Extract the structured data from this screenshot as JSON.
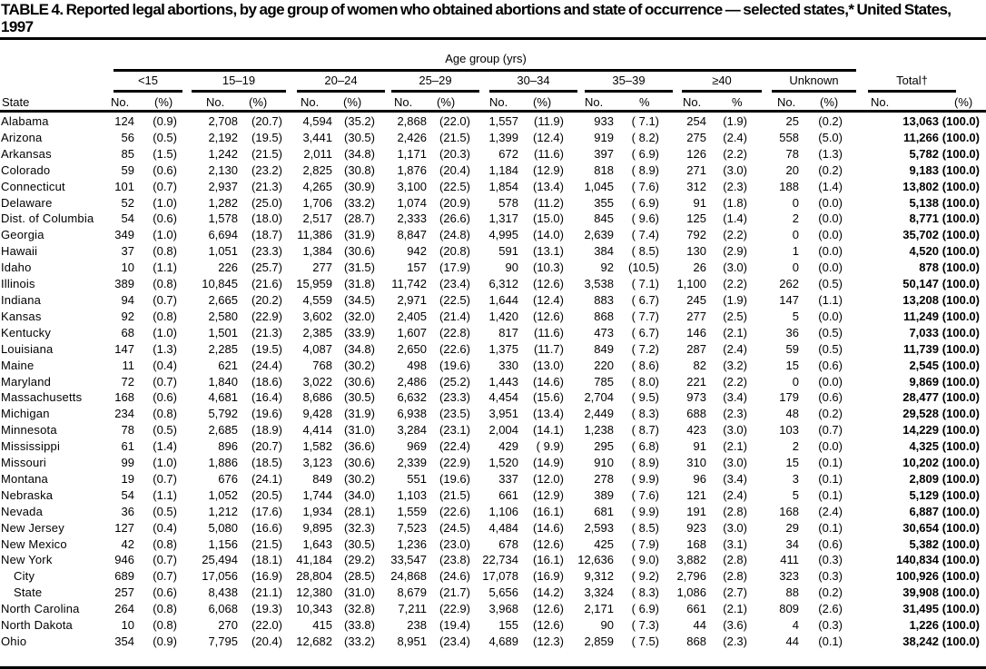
{
  "title": "TABLE 4. Reported legal abortions, by age group of women who obtained abortions and state of occurrence — selected states,* United States, 1997",
  "spanner": "Age group (yrs)",
  "groups": [
    "<15",
    "15–19",
    "20–24",
    "25–29",
    "30–34",
    "35–39",
    "≥40",
    "Unknown",
    "Total†"
  ],
  "col_heads": {
    "state": "State",
    "no": "No.",
    "pct": "(%)",
    "pct_plain": "%"
  },
  "rows": [
    {
      "state": "Alabama",
      "cells": [
        "124",
        "(0.9)",
        "2,708",
        "(20.7)",
        "4,594",
        "(35.2)",
        "2,868",
        "(22.0)",
        "1,557",
        "(11.9)",
        "933",
        "( 7.1)",
        "254",
        "(1.9)",
        "25",
        "(0.2)",
        "13,063",
        "(100.0)"
      ]
    },
    {
      "state": "Arizona",
      "cells": [
        "56",
        "(0.5)",
        "2,192",
        "(19.5)",
        "3,441",
        "(30.5)",
        "2,426",
        "(21.5)",
        "1,399",
        "(12.4)",
        "919",
        "( 8.2)",
        "275",
        "(2.4)",
        "558",
        "(5.0)",
        "11,266",
        "(100.0)"
      ]
    },
    {
      "state": "Arkansas",
      "cells": [
        "85",
        "(1.5)",
        "1,242",
        "(21.5)",
        "2,011",
        "(34.8)",
        "1,171",
        "(20.3)",
        "672",
        "(11.6)",
        "397",
        "( 6.9)",
        "126",
        "(2.2)",
        "78",
        "(1.3)",
        "5,782",
        "(100.0)"
      ]
    },
    {
      "state": "Colorado",
      "cells": [
        "59",
        "(0.6)",
        "2,130",
        "(23.2)",
        "2,825",
        "(30.8)",
        "1,876",
        "(20.4)",
        "1,184",
        "(12.9)",
        "818",
        "( 8.9)",
        "271",
        "(3.0)",
        "20",
        "(0.2)",
        "9,183",
        "(100.0)"
      ]
    },
    {
      "state": "Connecticut",
      "cells": [
        "101",
        "(0.7)",
        "2,937",
        "(21.3)",
        "4,265",
        "(30.9)",
        "3,100",
        "(22.5)",
        "1,854",
        "(13.4)",
        "1,045",
        "( 7.6)",
        "312",
        "(2.3)",
        "188",
        "(1.4)",
        "13,802",
        "(100.0)"
      ]
    },
    {
      "state": "Delaware",
      "cells": [
        "52",
        "(1.0)",
        "1,282",
        "(25.0)",
        "1,706",
        "(33.2)",
        "1,074",
        "(20.9)",
        "578",
        "(11.2)",
        "355",
        "( 6.9)",
        "91",
        "(1.8)",
        "0",
        "(0.0)",
        "5,138",
        "(100.0)"
      ]
    },
    {
      "state": "Dist. of Columbia",
      "cells": [
        "54",
        "(0.6)",
        "1,578",
        "(18.0)",
        "2,517",
        "(28.7)",
        "2,333",
        "(26.6)",
        "1,317",
        "(15.0)",
        "845",
        "( 9.6)",
        "125",
        "(1.4)",
        "2",
        "(0.0)",
        "8,771",
        "(100.0)"
      ]
    },
    {
      "state": "Georgia",
      "cells": [
        "349",
        "(1.0)",
        "6,694",
        "(18.7)",
        "11,386",
        "(31.9)",
        "8,847",
        "(24.8)",
        "4,995",
        "(14.0)",
        "2,639",
        "( 7.4)",
        "792",
        "(2.2)",
        "0",
        "(0.0)",
        "35,702",
        "(100.0)"
      ]
    },
    {
      "state": "Hawaii",
      "cells": [
        "37",
        "(0.8)",
        "1,051",
        "(23.3)",
        "1,384",
        "(30.6)",
        "942",
        "(20.8)",
        "591",
        "(13.1)",
        "384",
        "( 8.5)",
        "130",
        "(2.9)",
        "1",
        "(0.0)",
        "4,520",
        "(100.0)"
      ]
    },
    {
      "state": "Idaho",
      "cells": [
        "10",
        "(1.1)",
        "226",
        "(25.7)",
        "277",
        "(31.5)",
        "157",
        "(17.9)",
        "90",
        "(10.3)",
        "92",
        "(10.5)",
        "26",
        "(3.0)",
        "0",
        "(0.0)",
        "878",
        "(100.0)"
      ]
    },
    {
      "state": "Illinois",
      "cells": [
        "389",
        "(0.8)",
        "10,845",
        "(21.6)",
        "15,959",
        "(31.8)",
        "11,742",
        "(23.4)",
        "6,312",
        "(12.6)",
        "3,538",
        "( 7.1)",
        "1,100",
        "(2.2)",
        "262",
        "(0.5)",
        "50,147",
        "(100.0)"
      ]
    },
    {
      "state": "Indiana",
      "cells": [
        "94",
        "(0.7)",
        "2,665",
        "(20.2)",
        "4,559",
        "(34.5)",
        "2,971",
        "(22.5)",
        "1,644",
        "(12.4)",
        "883",
        "( 6.7)",
        "245",
        "(1.9)",
        "147",
        "(1.1)",
        "13,208",
        "(100.0)"
      ]
    },
    {
      "state": "Kansas",
      "cells": [
        "92",
        "(0.8)",
        "2,580",
        "(22.9)",
        "3,602",
        "(32.0)",
        "2,405",
        "(21.4)",
        "1,420",
        "(12.6)",
        "868",
        "( 7.7)",
        "277",
        "(2.5)",
        "5",
        "(0.0)",
        "11,249",
        "(100.0)"
      ]
    },
    {
      "state": "Kentucky",
      "cells": [
        "68",
        "(1.0)",
        "1,501",
        "(21.3)",
        "2,385",
        "(33.9)",
        "1,607",
        "(22.8)",
        "817",
        "(11.6)",
        "473",
        "( 6.7)",
        "146",
        "(2.1)",
        "36",
        "(0.5)",
        "7,033",
        "(100.0)"
      ]
    },
    {
      "state": "Louisiana",
      "cells": [
        "147",
        "(1.3)",
        "2,285",
        "(19.5)",
        "4,087",
        "(34.8)",
        "2,650",
        "(22.6)",
        "1,375",
        "(11.7)",
        "849",
        "( 7.2)",
        "287",
        "(2.4)",
        "59",
        "(0.5)",
        "11,739",
        "(100.0)"
      ]
    },
    {
      "state": "Maine",
      "cells": [
        "11",
        "(0.4)",
        "621",
        "(24.4)",
        "768",
        "(30.2)",
        "498",
        "(19.6)",
        "330",
        "(13.0)",
        "220",
        "( 8.6)",
        "82",
        "(3.2)",
        "15",
        "(0.6)",
        "2,545",
        "(100.0)"
      ]
    },
    {
      "state": "Maryland",
      "cells": [
        "72",
        "(0.7)",
        "1,840",
        "(18.6)",
        "3,022",
        "(30.6)",
        "2,486",
        "(25.2)",
        "1,443",
        "(14.6)",
        "785",
        "( 8.0)",
        "221",
        "(2.2)",
        "0",
        "(0.0)",
        "9,869",
        "(100.0)"
      ]
    },
    {
      "state": "Massachusetts",
      "cells": [
        "168",
        "(0.6)",
        "4,681",
        "(16.4)",
        "8,686",
        "(30.5)",
        "6,632",
        "(23.3)",
        "4,454",
        "(15.6)",
        "2,704",
        "( 9.5)",
        "973",
        "(3.4)",
        "179",
        "(0.6)",
        "28,477",
        "(100.0)"
      ]
    },
    {
      "state": "Michigan",
      "cells": [
        "234",
        "(0.8)",
        "5,792",
        "(19.6)",
        "9,428",
        "(31.9)",
        "6,938",
        "(23.5)",
        "3,951",
        "(13.4)",
        "2,449",
        "( 8.3)",
        "688",
        "(2.3)",
        "48",
        "(0.2)",
        "29,528",
        "(100.0)"
      ]
    },
    {
      "state": "Minnesota",
      "cells": [
        "78",
        "(0.5)",
        "2,685",
        "(18.9)",
        "4,414",
        "(31.0)",
        "3,284",
        "(23.1)",
        "2,004",
        "(14.1)",
        "1,238",
        "( 8.7)",
        "423",
        "(3.0)",
        "103",
        "(0.7)",
        "14,229",
        "(100.0)"
      ]
    },
    {
      "state": "Mississippi",
      "cells": [
        "61",
        "(1.4)",
        "896",
        "(20.7)",
        "1,582",
        "(36.6)",
        "969",
        "(22.4)",
        "429",
        "( 9.9)",
        "295",
        "( 6.8)",
        "91",
        "(2.1)",
        "2",
        "(0.0)",
        "4,325",
        "(100.0)"
      ]
    },
    {
      "state": "Missouri",
      "cells": [
        "99",
        "(1.0)",
        "1,886",
        "(18.5)",
        "3,123",
        "(30.6)",
        "2,339",
        "(22.9)",
        "1,520",
        "(14.9)",
        "910",
        "( 8.9)",
        "310",
        "(3.0)",
        "15",
        "(0.1)",
        "10,202",
        "(100.0)"
      ]
    },
    {
      "state": "Montana",
      "cells": [
        "19",
        "(0.7)",
        "676",
        "(24.1)",
        "849",
        "(30.2)",
        "551",
        "(19.6)",
        "337",
        "(12.0)",
        "278",
        "( 9.9)",
        "96",
        "(3.4)",
        "3",
        "(0.1)",
        "2,809",
        "(100.0)"
      ]
    },
    {
      "state": "Nebraska",
      "cells": [
        "54",
        "(1.1)",
        "1,052",
        "(20.5)",
        "1,744",
        "(34.0)",
        "1,103",
        "(21.5)",
        "661",
        "(12.9)",
        "389",
        "( 7.6)",
        "121",
        "(2.4)",
        "5",
        "(0.1)",
        "5,129",
        "(100.0)"
      ]
    },
    {
      "state": "Nevada",
      "cells": [
        "36",
        "(0.5)",
        "1,212",
        "(17.6)",
        "1,934",
        "(28.1)",
        "1,559",
        "(22.6)",
        "1,106",
        "(16.1)",
        "681",
        "( 9.9)",
        "191",
        "(2.8)",
        "168",
        "(2.4)",
        "6,887",
        "(100.0)"
      ]
    },
    {
      "state": "New Jersey",
      "cells": [
        "127",
        "(0.4)",
        "5,080",
        "(16.6)",
        "9,895",
        "(32.3)",
        "7,523",
        "(24.5)",
        "4,484",
        "(14.6)",
        "2,593",
        "( 8.5)",
        "923",
        "(3.0)",
        "29",
        "(0.1)",
        "30,654",
        "(100.0)"
      ]
    },
    {
      "state": "New Mexico",
      "cells": [
        "42",
        "(0.8)",
        "1,156",
        "(21.5)",
        "1,643",
        "(30.5)",
        "1,236",
        "(23.0)",
        "678",
        "(12.6)",
        "425",
        "( 7.9)",
        "168",
        "(3.1)",
        "34",
        "(0.6)",
        "5,382",
        "(100.0)"
      ]
    },
    {
      "state": "New York",
      "cells": [
        "946",
        "(0.7)",
        "25,494",
        "(18.1)",
        "41,184",
        "(29.2)",
        "33,547",
        "(23.8)",
        "22,734",
        "(16.1)",
        "12,636",
        "( 9.0)",
        "3,882",
        "(2.8)",
        "411",
        "(0.3)",
        "140,834",
        "(100.0)"
      ]
    },
    {
      "state": "City",
      "sub": true,
      "cells": [
        "689",
        "(0.7)",
        "17,056",
        "(16.9)",
        "28,804",
        "(28.5)",
        "24,868",
        "(24.6)",
        "17,078",
        "(16.9)",
        "9,312",
        "( 9.2)",
        "2,796",
        "(2.8)",
        "323",
        "(0.3)",
        "100,926",
        "(100.0)"
      ]
    },
    {
      "state": "State",
      "sub": true,
      "cells": [
        "257",
        "(0.6)",
        "8,438",
        "(21.1)",
        "12,380",
        "(31.0)",
        "8,679",
        "(21.7)",
        "5,656",
        "(14.2)",
        "3,324",
        "( 8.3)",
        "1,086",
        "(2.7)",
        "88",
        "(0.2)",
        "39,908",
        "(100.0)"
      ]
    },
    {
      "state": "North Carolina",
      "cells": [
        "264",
        "(0.8)",
        "6,068",
        "(19.3)",
        "10,343",
        "(32.8)",
        "7,211",
        "(22.9)",
        "3,968",
        "(12.6)",
        "2,171",
        "( 6.9)",
        "661",
        "(2.1)",
        "809",
        "(2.6)",
        "31,495",
        "(100.0)"
      ]
    },
    {
      "state": "North Dakota",
      "cells": [
        "10",
        "(0.8)",
        "270",
        "(22.0)",
        "415",
        "(33.8)",
        "238",
        "(19.4)",
        "155",
        "(12.6)",
        "90",
        "( 7.3)",
        "44",
        "(3.6)",
        "4",
        "(0.3)",
        "1,226",
        "(100.0)"
      ]
    },
    {
      "state": "Ohio",
      "cells": [
        "354",
        "(0.9)",
        "7,795",
        "(20.4)",
        "12,682",
        "(33.2)",
        "8,951",
        "(23.4)",
        "4,689",
        "(12.3)",
        "2,859",
        "( 7.5)",
        "868",
        "(2.3)",
        "44",
        "(0.1)",
        "38,242",
        "(100.0)"
      ]
    }
  ]
}
